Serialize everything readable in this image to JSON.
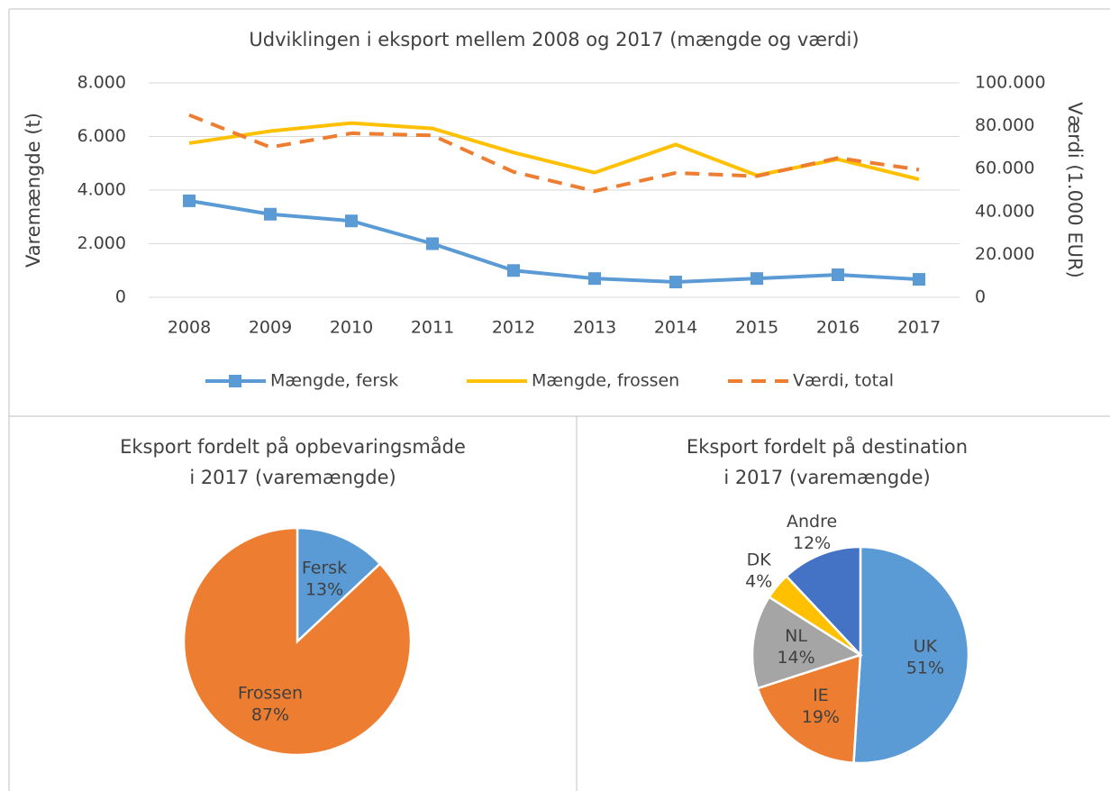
{
  "chart_data": [
    {
      "type": "line",
      "title": "Udviklingen i eksport mellem 2008 og 2017 (mængde og værdi)",
      "ylabel": "Varemængde (t)",
      "y2label": "Værdi (1.000 EUR)",
      "categories": [
        "2008",
        "2009",
        "2010",
        "2011",
        "2012",
        "2013",
        "2014",
        "2015",
        "2016",
        "2017"
      ],
      "series": [
        {
          "name": "Mængde, fersk",
          "color": "#5b9bd5",
          "marker": "square",
          "values": [
            3600,
            3100,
            2850,
            2000,
            1000,
            700,
            570,
            700,
            840,
            670
          ]
        },
        {
          "name": "Mængde, frossen",
          "color": "#ffc000",
          "values": [
            5750,
            6200,
            6500,
            6300,
            5400,
            4650,
            5700,
            4550,
            5150,
            4400
          ]
        },
        {
          "name": "Værdi, total",
          "color": "#ed7d31",
          "dashed": true,
          "axis": "y2",
          "values": [
            85000,
            70000,
            76500,
            75500,
            58500,
            49500,
            58000,
            56500,
            65000,
            59500
          ]
        }
      ],
      "ylim": [
        0,
        8000
      ],
      "yticks": [
        0,
        {
          "value": 2000,
          "label": "2.000"
        },
        {
          "value": 4000,
          "label": "4.000"
        },
        {
          "value": 6000,
          "label": "6.000"
        },
        {
          "value": 8000,
          "label": "8.000"
        }
      ],
      "y2lim": [
        0,
        100000
      ],
      "y2ticks": [
        0,
        {
          "value": 20000,
          "label": "20.000"
        },
        {
          "value": 40000,
          "label": "40.000"
        },
        {
          "value": 60000,
          "label": "60.000"
        },
        {
          "value": 80000,
          "label": "80.000"
        },
        {
          "value": 100000,
          "label": "100.000"
        }
      ],
      "grid": true,
      "legend": "bottom"
    },
    {
      "type": "pie",
      "title": [
        "Eksport fordelt på opbevaringsmåde",
        "i 2017 (varemængde)"
      ],
      "categories": [
        "Fersk",
        "Frossen"
      ],
      "values": [
        13,
        87
      ],
      "value_labels": [
        "13%",
        "87%"
      ],
      "colors": [
        "#5b9bd5",
        "#ed7d31"
      ]
    },
    {
      "type": "pie",
      "title": [
        "Eksport fordelt på destination",
        "i 2017 (varemængde)"
      ],
      "categories": [
        "UK",
        "IE",
        "NL",
        "DK",
        "Andre"
      ],
      "values": [
        51,
        19,
        14,
        4,
        12
      ],
      "value_labels": [
        "51%",
        "19%",
        "14%",
        "4%",
        "12%"
      ],
      "colors": [
        "#5b9bd5",
        "#ed7d31",
        "#a5a5a5",
        "#ffc000",
        "#4472c4"
      ]
    }
  ]
}
